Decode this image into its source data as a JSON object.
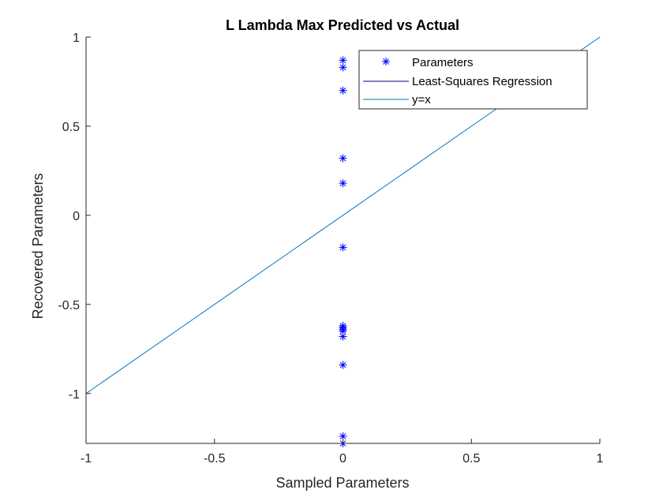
{
  "chart_data": {
    "type": "scatter",
    "title": "L Lambda Max Predicted vs Actual",
    "xlabel": "Sampled Parameters",
    "ylabel": "Recovered Parameters",
    "xlim": [
      -1,
      1
    ],
    "ylim": [
      -1.28,
      1
    ],
    "xticks": [
      -1,
      -0.5,
      0,
      0.5,
      1
    ],
    "xtick_labels": [
      "-1",
      "-0.5",
      "0",
      "0.5",
      "1"
    ],
    "yticks": [
      -1,
      -0.5,
      0,
      0.5,
      1
    ],
    "ytick_labels": [
      "-1",
      "-0.5",
      "0",
      "0.5",
      "1"
    ],
    "grid": false,
    "legend_position": "top-right",
    "legend": [
      "Parameters",
      "Least-Squares Regression",
      "y=x"
    ],
    "series": [
      {
        "name": "Parameters",
        "kind": "markers",
        "marker": "asterisk",
        "color": "#0000ff",
        "points": [
          [
            0,
            0.87
          ],
          [
            0,
            0.83
          ],
          [
            0,
            0.7
          ],
          [
            0,
            0.32
          ],
          [
            0,
            0.18
          ],
          [
            0,
            -0.18
          ],
          [
            0,
            -0.62
          ],
          [
            0,
            -0.63
          ],
          [
            0,
            -0.64
          ],
          [
            0,
            -0.65
          ],
          [
            0,
            -0.68
          ],
          [
            0,
            -0.84
          ],
          [
            0,
            -1.24
          ],
          [
            0,
            -1.28
          ]
        ]
      },
      {
        "name": "Least-Squares Regression",
        "kind": "line",
        "color": "#00008b",
        "points": []
      },
      {
        "name": "y=x",
        "kind": "line",
        "color": "#0072bd",
        "points": [
          [
            -1,
            -1
          ],
          [
            1,
            1
          ]
        ]
      }
    ]
  }
}
